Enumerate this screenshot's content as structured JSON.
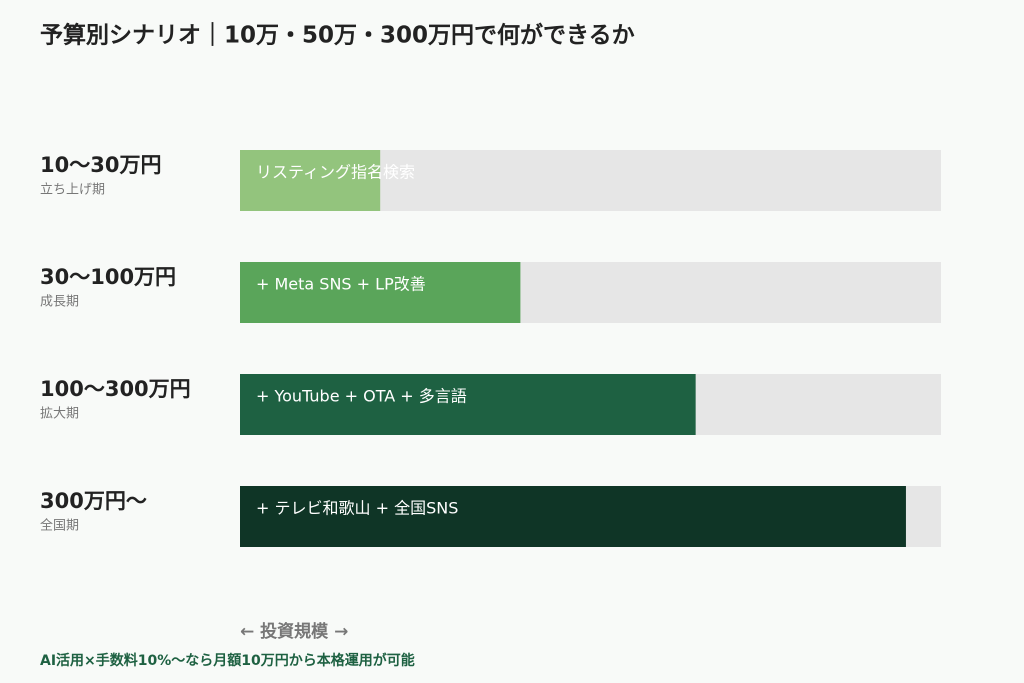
{
  "chart_data": {
    "type": "bar",
    "orientation": "horizontal",
    "title": "予算別シナリオ｜10万・50万・300万円で何ができるか",
    "categories": [
      "10〜30万円",
      "30〜100万円",
      "100〜300万円",
      "300万円〜"
    ],
    "category_sublabels": [
      "立ち上げ期",
      "成長期",
      "拡大期",
      "全国期"
    ],
    "bar_labels": [
      "リスティング指名検索",
      "+ Meta SNS + LP改善",
      "+ YouTube + OTA + 多言語",
      "+ テレビ和歌山 + 全国SNS"
    ],
    "values": [
      20,
      40,
      65,
      95
    ],
    "colors": [
      "#93c47d",
      "#5aa55a",
      "#1e6142",
      "#0f3526"
    ],
    "track_color": "#e6e6e6",
    "xlim": [
      0,
      100
    ],
    "xlabel": "← 投資規模 →",
    "note": "AI活用×手数料10%〜なら月額10万円から本格運用が可能"
  }
}
